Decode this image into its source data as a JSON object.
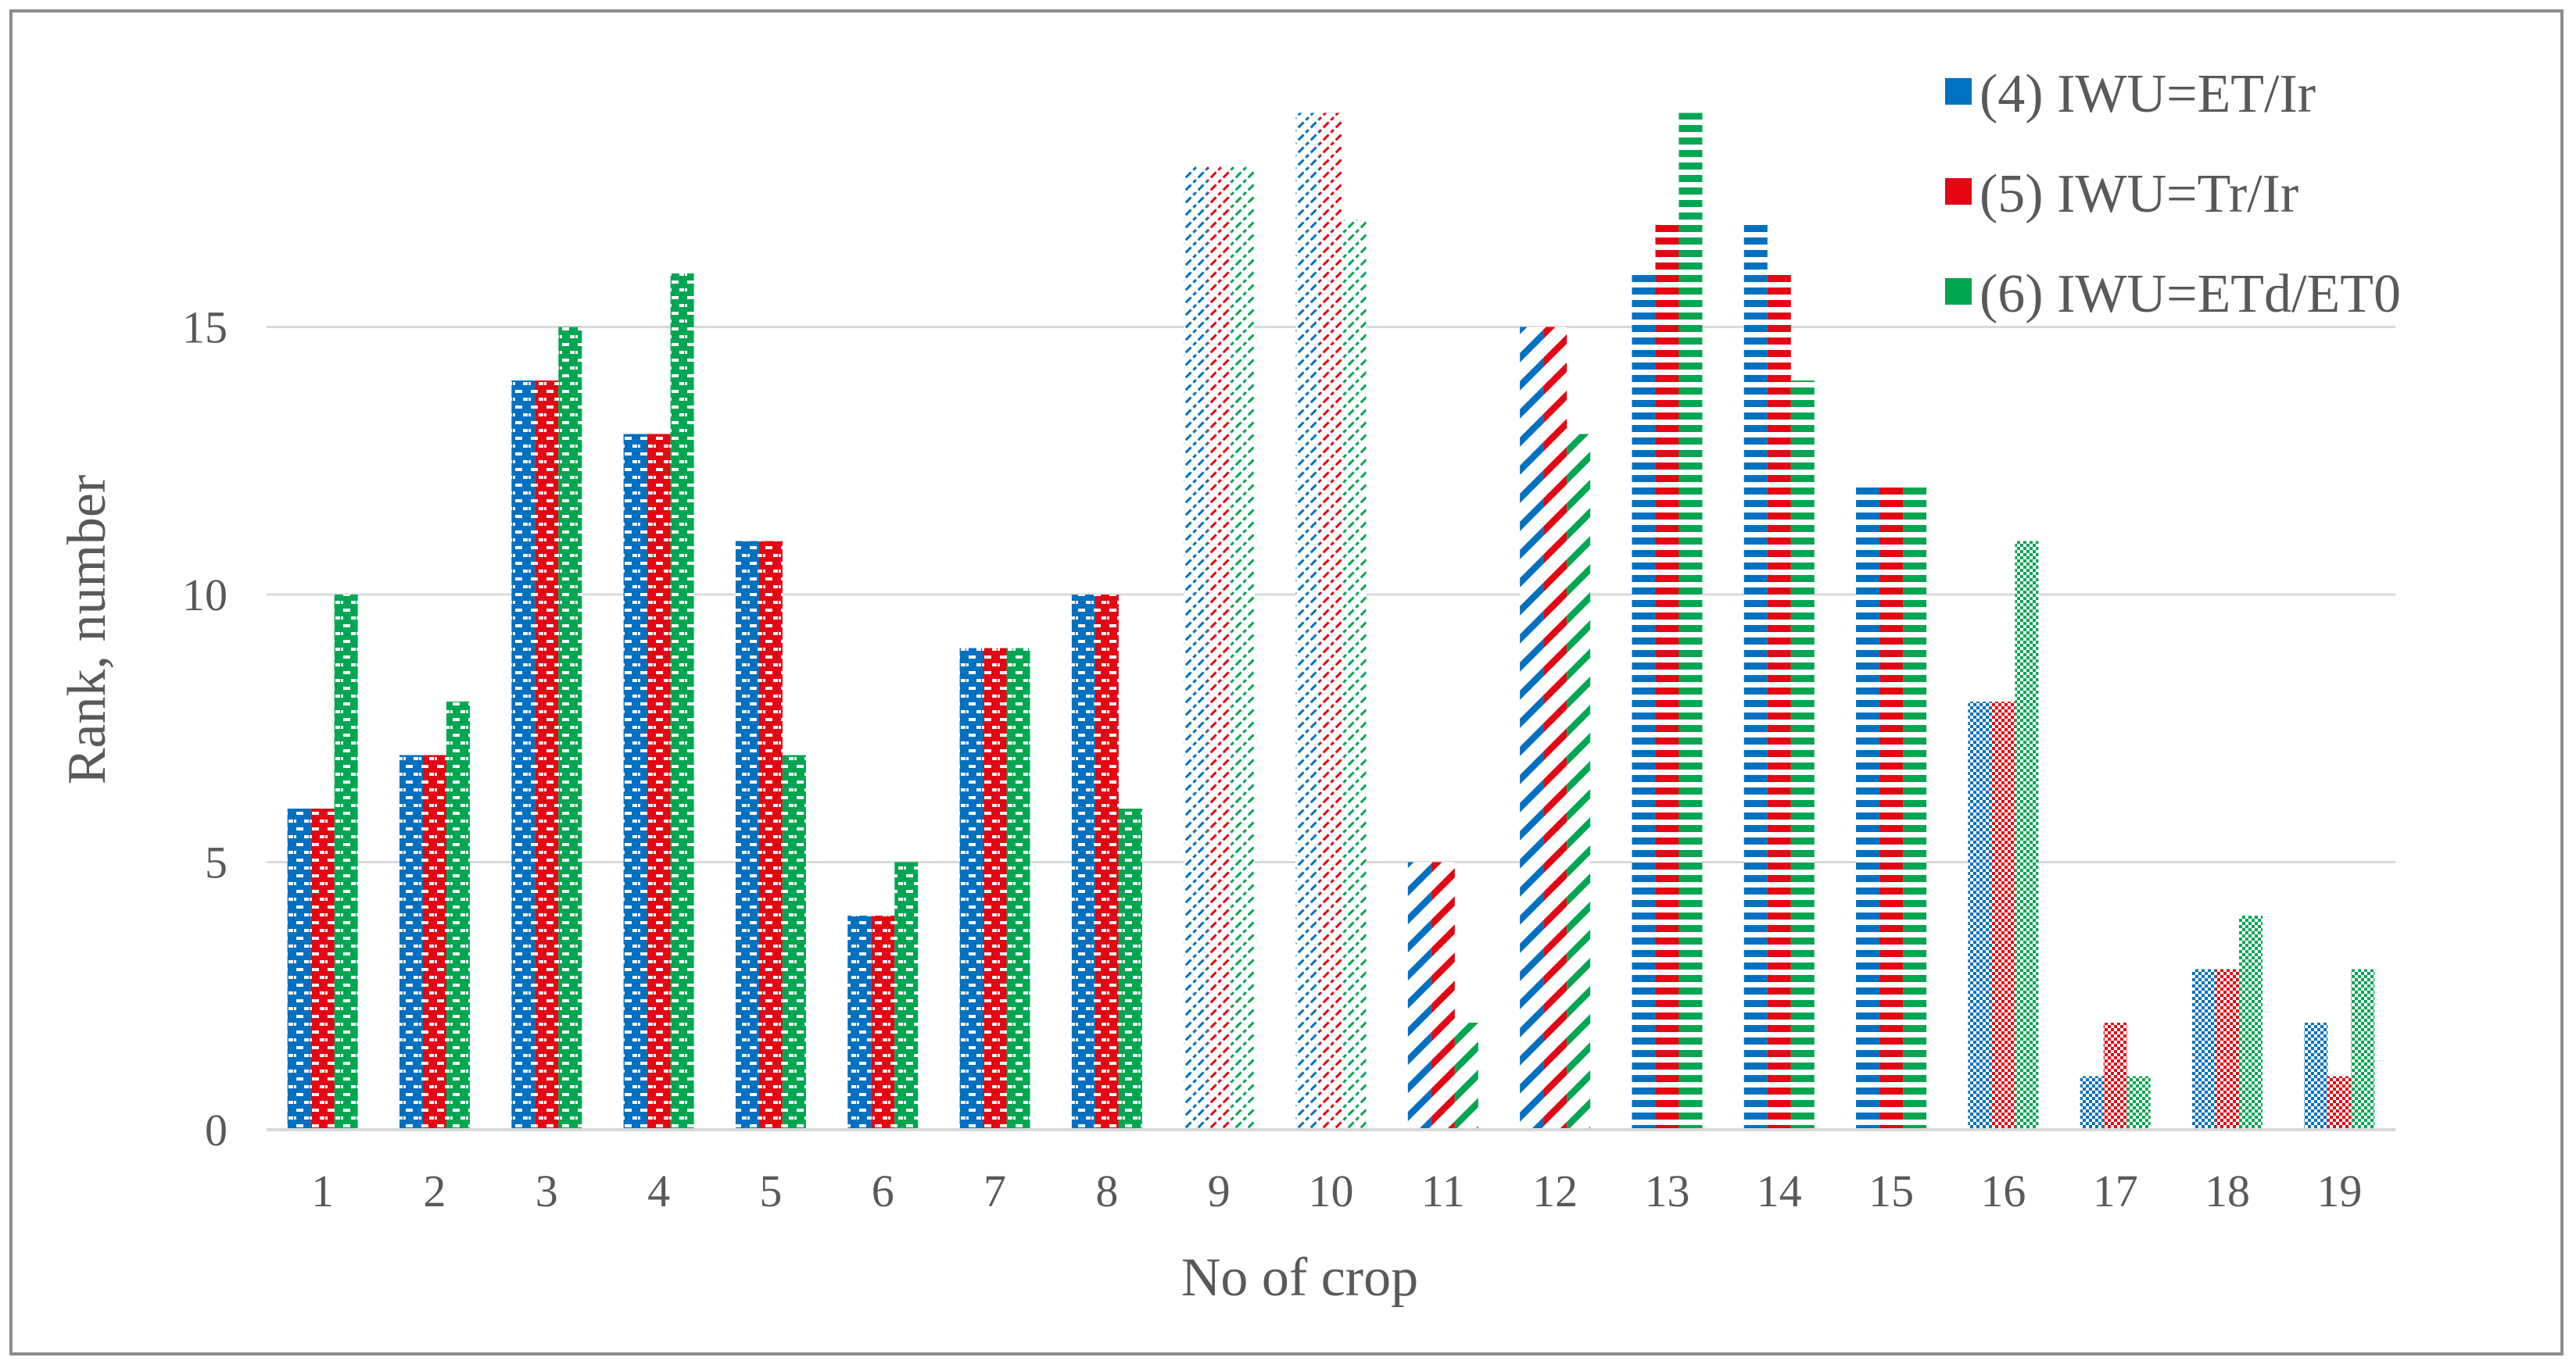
{
  "chart_data": {
    "type": "bar",
    "title": "",
    "xlabel": "No of crop",
    "ylabel": "Rank, number",
    "ylim": [
      0,
      20
    ],
    "yticks": [
      0,
      5,
      10,
      15
    ],
    "grid": true,
    "legend_position": "top-right",
    "categories": [
      "1",
      "2",
      "3",
      "4",
      "5",
      "6",
      "7",
      "8",
      "9",
      "10",
      "11",
      "12",
      "13",
      "14",
      "15",
      "16",
      "17",
      "18",
      "19"
    ],
    "category_patterns": [
      "brick",
      "brick",
      "brick",
      "brick",
      "brick",
      "brick",
      "brick",
      "brick",
      "dashdiag",
      "dashdiag",
      "diag",
      "diag",
      "hdash",
      "hdash",
      "hdash",
      "check",
      "check",
      "check",
      "check"
    ],
    "series": [
      {
        "name": "(4) IWU=ET/Ir",
        "color": "#0070c0",
        "values": [
          6,
          7,
          14,
          13,
          11,
          4,
          9,
          10,
          18,
          19,
          5,
          15,
          16,
          17,
          12,
          8,
          1,
          3,
          2
        ]
      },
      {
        "name": "(5) IWU=Tr/Ir",
        "color": "#e30613",
        "values": [
          6,
          7,
          14,
          13,
          11,
          4,
          9,
          10,
          18,
          19,
          5,
          15,
          17,
          16,
          12,
          8,
          2,
          3,
          1
        ]
      },
      {
        "name": "(6) IWU=ETd/ET0",
        "color": "#00a651",
        "values": [
          10,
          8,
          15,
          16,
          7,
          5,
          9,
          6,
          18,
          17,
          2,
          13,
          19,
          14,
          12,
          11,
          1,
          4,
          3
        ]
      }
    ]
  }
}
